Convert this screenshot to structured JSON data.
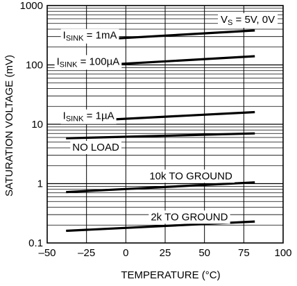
{
  "chart_data": {
    "type": "line",
    "title": "",
    "xlabel": "TEMPERATURE (°C)",
    "ylabel": "SATURATION VOLTAGE (mV)",
    "xlim": [
      -50,
      100
    ],
    "ylim": [
      0.1,
      1000
    ],
    "yscale": "log",
    "grid": true,
    "x_ticks": [
      "–50",
      "–25",
      "0",
      "25",
      "50",
      "75",
      "100"
    ],
    "y_ticks": [
      "0.1",
      "1",
      "10",
      "100",
      "1000"
    ],
    "legend_note": {
      "main": "V",
      "sub": "S",
      "rest": " = 5V, 0V"
    },
    "series": [
      {
        "name_main": "I",
        "name_sub": "SINK",
        "name_rest": " = 1mA",
        "x": [
          -38,
          82
        ],
        "y": [
          250,
          380
        ]
      },
      {
        "name_main": "I",
        "name_sub": "SINK",
        "name_rest": " = 100µA",
        "x": [
          -38,
          82
        ],
        "y": [
          92,
          140
        ]
      },
      {
        "name_main": "I",
        "name_sub": "SINK",
        "name_rest": " = 1µA",
        "x": [
          -38,
          82
        ],
        "y": [
          11,
          16
        ]
      },
      {
        "name_main": "NO LOAD",
        "name_sub": "",
        "name_rest": "",
        "x": [
          -38,
          82
        ],
        "y": [
          5.8,
          7
        ]
      },
      {
        "name_main": "10k TO GROUND",
        "name_sub": "",
        "name_rest": "",
        "x": [
          -38,
          82
        ],
        "y": [
          0.72,
          1.05
        ]
      },
      {
        "name_main": "2k TO GROUND",
        "name_sub": "",
        "name_rest": "",
        "x": [
          -38,
          82
        ],
        "y": [
          0.16,
          0.23
        ]
      }
    ]
  }
}
